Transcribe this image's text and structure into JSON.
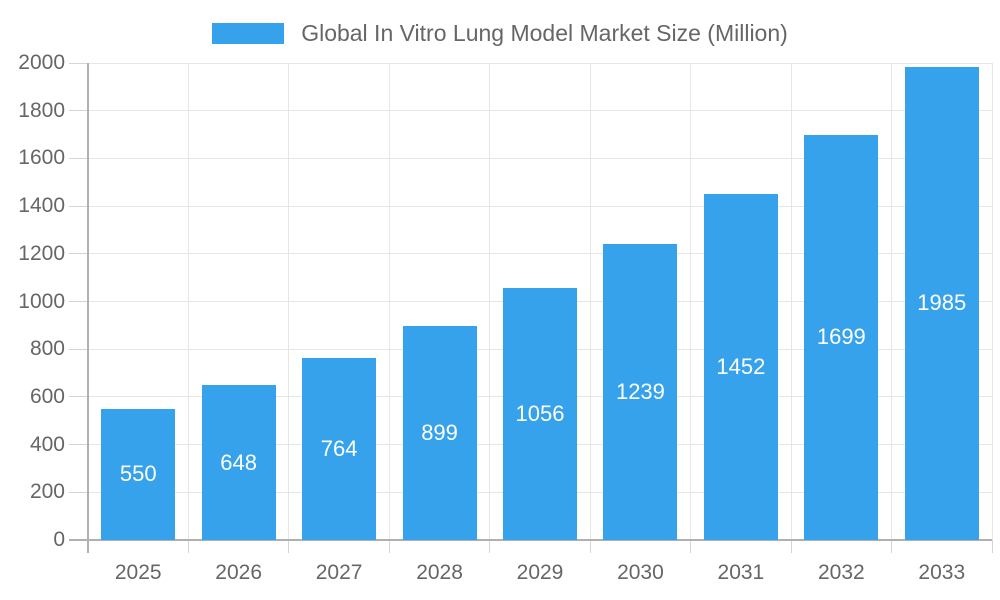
{
  "chart_data": {
    "type": "bar",
    "title": "Global In Vitro Lung Model Market Size (Million)",
    "categories": [
      "2025",
      "2026",
      "2027",
      "2028",
      "2029",
      "2030",
      "2031",
      "2032",
      "2033"
    ],
    "values": [
      550,
      648,
      764,
      899,
      1056,
      1239,
      1452,
      1699,
      1985
    ],
    "bar_value_labels": [
      "550",
      "648",
      "764",
      "899",
      "1056",
      "1239",
      "1452",
      "1699",
      "1985"
    ],
    "xlabel": "",
    "ylabel": "",
    "ylim": [
      0,
      2000
    ],
    "ytick_step": 200,
    "ytick_labels": [
      "0",
      "200",
      "400",
      "600",
      "800",
      "1000",
      "1200",
      "1400",
      "1600",
      "1800",
      "2000"
    ],
    "grid": true,
    "legend_position": "top",
    "colors": {
      "bar": "#36A2EB",
      "bar_value_text": "#ffffff",
      "legend_text": "#666666",
      "axis_text": "#666666",
      "gridline": "#e6e6e6",
      "tick": "#d4d4d4",
      "axis_line": "#b0b0b0",
      "background": "#ffffff"
    }
  }
}
